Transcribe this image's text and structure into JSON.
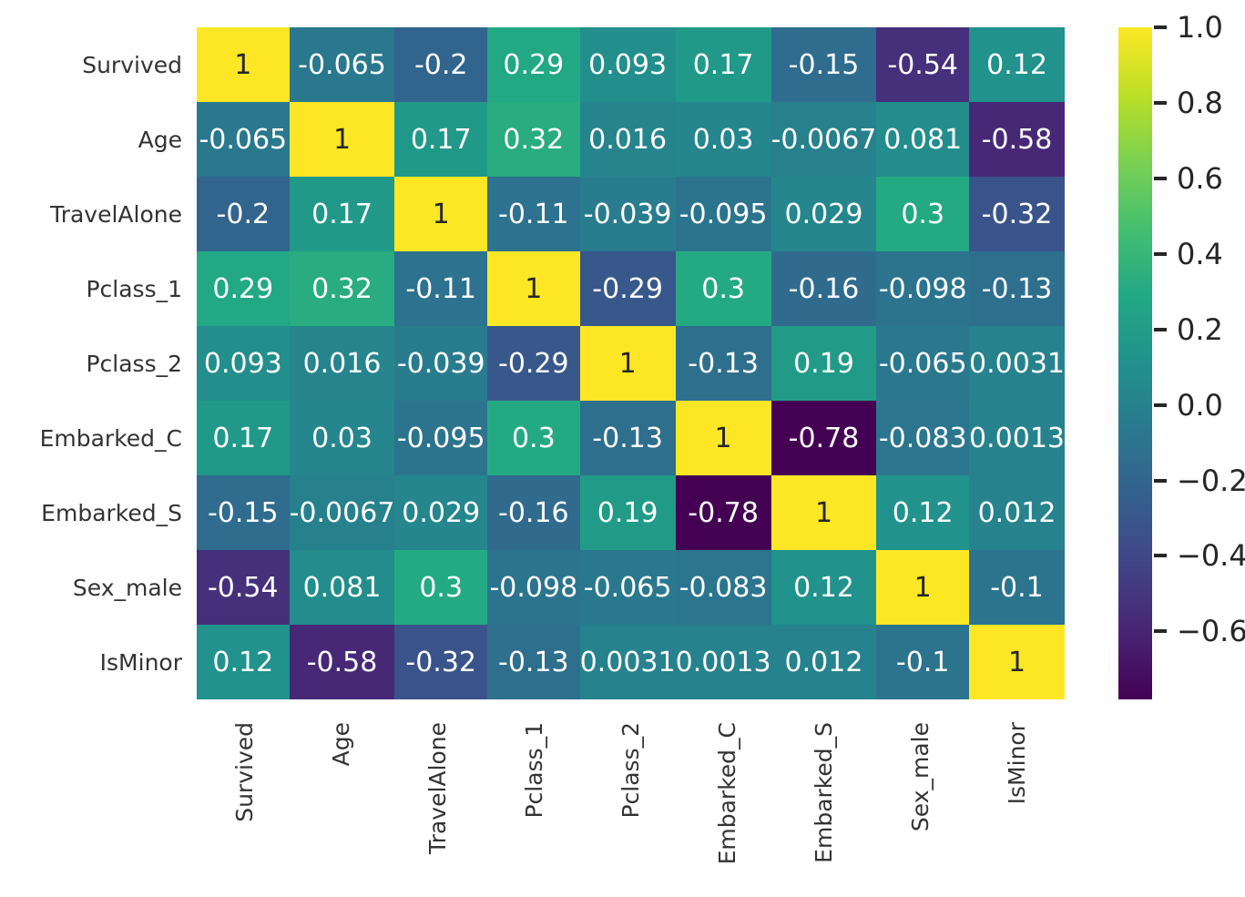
{
  "figure": {
    "background": "#ffffff"
  },
  "chart_data": {
    "type": "heatmap",
    "title": "",
    "xlabel": "",
    "ylabel": "",
    "x_tick_labels": [
      "Survived",
      "Age",
      "TravelAlone",
      "Pclass_1",
      "Pclass_2",
      "Embarked_C",
      "Embarked_S",
      "Sex_male",
      "IsMinor"
    ],
    "y_tick_labels": [
      "Survived",
      "Age",
      "TravelAlone",
      "Pclass_1",
      "Pclass_2",
      "Embarked_C",
      "Embarked_S",
      "Sex_male",
      "IsMinor"
    ],
    "cell_text": [
      [
        "1",
        "-0.065",
        "-0.2",
        "0.29",
        "0.093",
        "0.17",
        "-0.15",
        "-0.54",
        "0.12"
      ],
      [
        "-0.065",
        "1",
        "0.17",
        "0.32",
        "0.016",
        "0.03",
        "-0.0067",
        "0.081",
        "-0.58"
      ],
      [
        "-0.2",
        "0.17",
        "1",
        "-0.11",
        "-0.039",
        "-0.095",
        "0.029",
        "0.3",
        "-0.32"
      ],
      [
        "0.29",
        "0.32",
        "-0.11",
        "1",
        "-0.29",
        "0.3",
        "-0.16",
        "-0.098",
        "-0.13"
      ],
      [
        "0.093",
        "0.016",
        "-0.039",
        "-0.29",
        "1",
        "-0.13",
        "0.19",
        "-0.065",
        "0.0031"
      ],
      [
        "0.17",
        "0.03",
        "-0.095",
        "0.3",
        "-0.13",
        "1",
        "-0.78",
        "-0.083",
        "0.0013"
      ],
      [
        "-0.15",
        "-0.0067",
        "0.029",
        "-0.16",
        "0.19",
        "-0.78",
        "1",
        "0.12",
        "0.012"
      ],
      [
        "-0.54",
        "0.081",
        "0.3",
        "-0.098",
        "-0.065",
        "-0.083",
        "0.12",
        "1",
        "-0.1"
      ],
      [
        "0.12",
        "-0.58",
        "-0.32",
        "-0.13",
        "0.0031",
        "0.0013",
        "0.012",
        "-0.1",
        "1"
      ]
    ],
    "vmin": -0.78,
    "vmax": 1.0,
    "colormap": "viridis",
    "colormap_stops": [
      "#440154",
      "#482475",
      "#414487",
      "#355f8d",
      "#2a788e",
      "#21918c",
      "#22a884",
      "#44bf70",
      "#7ad151",
      "#bddf26",
      "#fde725"
    ],
    "colorbar": {
      "position": "right",
      "tick_labels": [
        "1.0",
        "0.8",
        "0.6",
        "0.4",
        "0.2",
        "0.0",
        "−0.2",
        "−0.4",
        "−0.6"
      ],
      "tick_values": [
        1.0,
        0.8,
        0.6,
        0.4,
        0.2,
        0.0,
        -0.2,
        -0.4,
        -0.6
      ]
    },
    "annotation_color_dark": "#262626",
    "annotation_color_light": "#ffffff",
    "axis_label_color": "#333333",
    "grid": false,
    "legend_position": "none"
  }
}
